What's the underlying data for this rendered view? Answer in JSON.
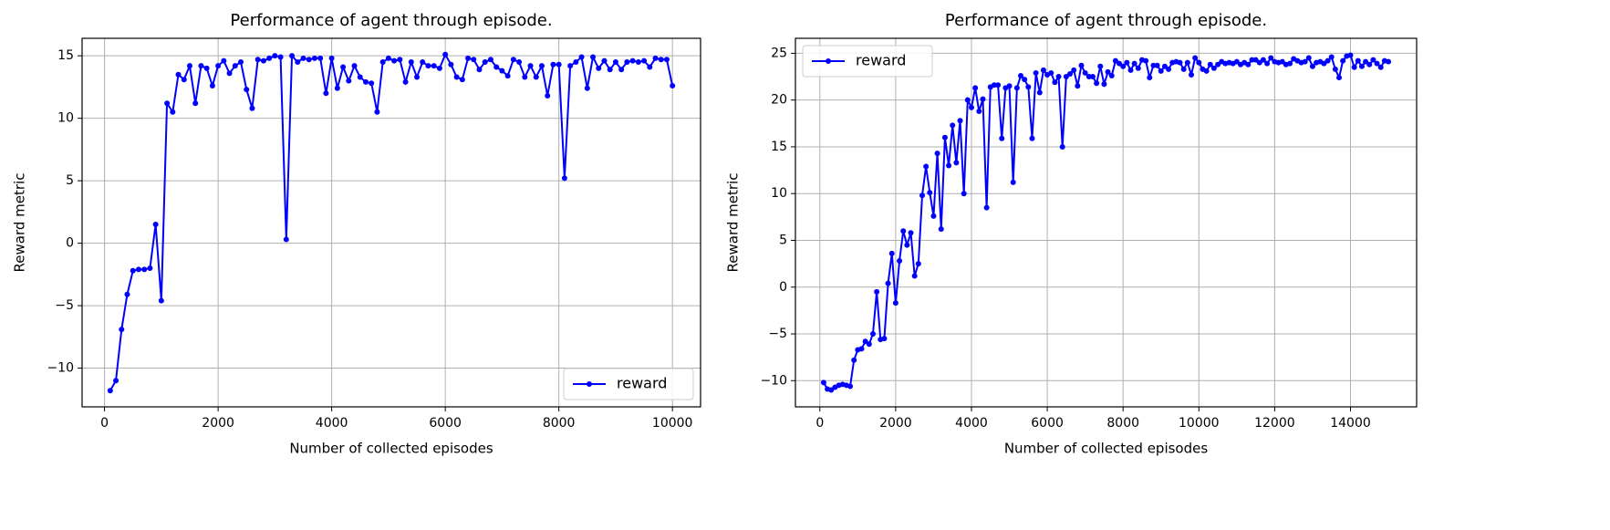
{
  "chart_data": [
    {
      "type": "line",
      "title": "Performance of agent through episode.",
      "x_label": "Number of collected episodes",
      "y_label": "Reward metric",
      "x": [
        100,
        200,
        300,
        400,
        500,
        600,
        700,
        800,
        900,
        1000,
        1100,
        1200,
        1300,
        1400,
        1500,
        1600,
        1700,
        1800,
        1900,
        2000,
        2100,
        2200,
        2300,
        2400,
        2500,
        2600,
        2700,
        2800,
        2900,
        3000,
        3100,
        3200,
        3300,
        3400,
        3500,
        3600,
        3700,
        3800,
        3900,
        4000,
        4100,
        4200,
        4300,
        4400,
        4500,
        4600,
        4700,
        4800,
        4900,
        5000,
        5100,
        5200,
        5300,
        5400,
        5500,
        5600,
        5700,
        5800,
        5900,
        6000,
        6100,
        6200,
        6300,
        6400,
        6500,
        6600,
        6700,
        6800,
        6900,
        7000,
        7100,
        7200,
        7300,
        7400,
        7500,
        7600,
        7700,
        7800,
        7900,
        8000,
        8100,
        8200,
        8300,
        8400,
        8500,
        8600,
        8700,
        8800,
        8900,
        9000,
        9100,
        9200,
        9300,
        9400,
        9500,
        9600,
        9700,
        9800,
        9900,
        10000
      ],
      "series": [
        {
          "name": "reward",
          "color": "#0000ff",
          "values": [
            -11.8,
            -11.0,
            -6.9,
            -4.1,
            -2.2,
            -2.1,
            -2.1,
            -2.0,
            1.5,
            -4.6,
            11.2,
            10.5,
            13.5,
            13.1,
            14.2,
            11.2,
            14.2,
            14.0,
            12.6,
            14.2,
            14.6,
            13.6,
            14.2,
            14.5,
            12.3,
            10.8,
            14.7,
            14.6,
            14.8,
            15.0,
            14.9,
            0.3,
            15.0,
            14.5,
            14.8,
            14.7,
            14.8,
            14.8,
            12.0,
            14.8,
            12.4,
            14.1,
            13.0,
            14.2,
            13.3,
            12.9,
            12.8,
            10.5,
            14.5,
            14.8,
            14.6,
            14.7,
            12.9,
            14.5,
            13.3,
            14.5,
            14.2,
            14.2,
            14.0,
            15.1,
            14.3,
            13.3,
            13.1,
            14.8,
            14.7,
            13.9,
            14.5,
            14.7,
            14.1,
            13.8,
            13.4,
            14.7,
            14.5,
            13.3,
            14.2,
            13.3,
            14.2,
            11.8,
            14.3,
            14.3,
            5.2,
            14.2,
            14.5,
            14.9,
            12.4,
            14.9,
            14.0,
            14.6,
            13.9,
            14.5,
            13.9,
            14.5,
            14.6,
            14.5,
            14.6,
            14.1,
            14.8,
            14.7,
            14.7,
            12.6
          ]
        }
      ],
      "xlim": [
        -395,
        10495
      ],
      "ylim": [
        -13.1,
        16.4
      ],
      "xticks": [
        0,
        2000,
        4000,
        6000,
        8000,
        10000
      ],
      "yticks": [
        {
          "value": -10,
          "label": "−10"
        },
        {
          "value": -5,
          "label": "−5"
        },
        0,
        5,
        10,
        15
      ],
      "grid": true,
      "legend": "lower right"
    },
    {
      "type": "line",
      "title": "Performance of agent through episode.",
      "x_label": "Number of collected episodes",
      "y_label": "Reward metric",
      "x": [
        100,
        200,
        300,
        400,
        500,
        600,
        700,
        800,
        900,
        1000,
        1100,
        1200,
        1300,
        1400,
        1500,
        1600,
        1700,
        1800,
        1900,
        2000,
        2100,
        2200,
        2300,
        2400,
        2500,
        2600,
        2700,
        2800,
        2900,
        3000,
        3100,
        3200,
        3300,
        3400,
        3500,
        3600,
        3700,
        3800,
        3900,
        4000,
        4100,
        4200,
        4300,
        4400,
        4500,
        4600,
        4700,
        4800,
        4900,
        5000,
        5100,
        5200,
        5300,
        5400,
        5500,
        5600,
        5700,
        5800,
        5900,
        6000,
        6100,
        6200,
        6300,
        6400,
        6500,
        6600,
        6700,
        6800,
        6900,
        7000,
        7100,
        7200,
        7300,
        7400,
        7500,
        7600,
        7700,
        7800,
        7900,
        8000,
        8100,
        8200,
        8300,
        8400,
        8500,
        8600,
        8700,
        8800,
        8900,
        9000,
        9100,
        9200,
        9300,
        9400,
        9500,
        9600,
        9700,
        9800,
        9900,
        10000,
        10100,
        10200,
        10300,
        10400,
        10500,
        10600,
        10700,
        10800,
        10900,
        11000,
        11100,
        11200,
        11300,
        11400,
        11500,
        11600,
        11700,
        11800,
        11900,
        12000,
        12100,
        12200,
        12300,
        12400,
        12500,
        12600,
        12700,
        12800,
        12900,
        13000,
        13100,
        13200,
        13300,
        13400,
        13500,
        13600,
        13700,
        13800,
        13900,
        14000,
        14100,
        14200,
        14300,
        14400,
        14500,
        14600,
        14700,
        14800,
        14900,
        15000
      ],
      "series": [
        {
          "name": "reward",
          "color": "#0000ff",
          "values": [
            -10.2,
            -10.9,
            -11.0,
            -10.7,
            -10.5,
            -10.4,
            -10.5,
            -10.6,
            -7.8,
            -6.7,
            -6.6,
            -5.8,
            -6.1,
            -5.0,
            -0.5,
            -5.6,
            -5.5,
            0.4,
            3.6,
            -1.7,
            2.8,
            6.0,
            4.5,
            5.8,
            1.2,
            2.5,
            9.8,
            12.9,
            10.1,
            7.6,
            14.3,
            6.2,
            16.0,
            13.0,
            17.3,
            13.3,
            17.8,
            10.0,
            20.0,
            19.2,
            21.3,
            18.8,
            20.1,
            8.5,
            21.4,
            21.6,
            21.6,
            15.9,
            21.3,
            21.5,
            11.2,
            21.3,
            22.6,
            22.2,
            21.4,
            15.9,
            22.9,
            20.8,
            23.2,
            22.7,
            22.9,
            21.9,
            22.5,
            15.0,
            22.5,
            22.8,
            23.2,
            21.5,
            23.7,
            22.9,
            22.5,
            22.5,
            21.8,
            23.6,
            21.7,
            23.0,
            22.6,
            24.2,
            23.9,
            23.6,
            24.0,
            23.2,
            23.9,
            23.4,
            24.3,
            24.2,
            22.4,
            23.7,
            23.7,
            23.1,
            23.6,
            23.3,
            24.0,
            24.1,
            24.0,
            23.3,
            24.0,
            22.7,
            24.5,
            24.0,
            23.3,
            23.1,
            23.8,
            23.4,
            23.8,
            24.1,
            23.9,
            24.0,
            23.9,
            24.1,
            23.8,
            24.0,
            23.8,
            24.3,
            24.3,
            24.0,
            24.3,
            23.9,
            24.5,
            24.1,
            24.0,
            24.1,
            23.8,
            23.9,
            24.4,
            24.2,
            24.0,
            24.1,
            24.5,
            23.6,
            24.0,
            24.1,
            23.9,
            24.2,
            24.6,
            23.3,
            22.4,
            24.2,
            24.7,
            24.8,
            23.5,
            24.2,
            23.6,
            24.1,
            23.8,
            24.3,
            23.9,
            23.5,
            24.2,
            24.1
          ]
        }
      ],
      "xlim": [
        -645,
        15745
      ],
      "ylim": [
        -12.8,
        26.6
      ],
      "xticks": [
        0,
        2000,
        4000,
        6000,
        8000,
        10000,
        12000,
        14000
      ],
      "yticks": [
        {
          "value": -10,
          "label": "−10"
        },
        {
          "value": -5,
          "label": "−5"
        },
        0,
        5,
        10,
        15,
        20,
        25
      ],
      "grid": true,
      "legend": "upper left"
    }
  ]
}
